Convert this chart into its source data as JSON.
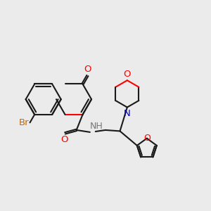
{
  "bg_color": "#ebebeb",
  "bond_color": "#1a1a1a",
  "o_color": "#ff0000",
  "n_color": "#0000cc",
  "br_color": "#cc6600",
  "lw": 1.5,
  "fs": 9.5,
  "xlim": [
    0,
    10
  ],
  "ylim": [
    -1,
    6
  ]
}
